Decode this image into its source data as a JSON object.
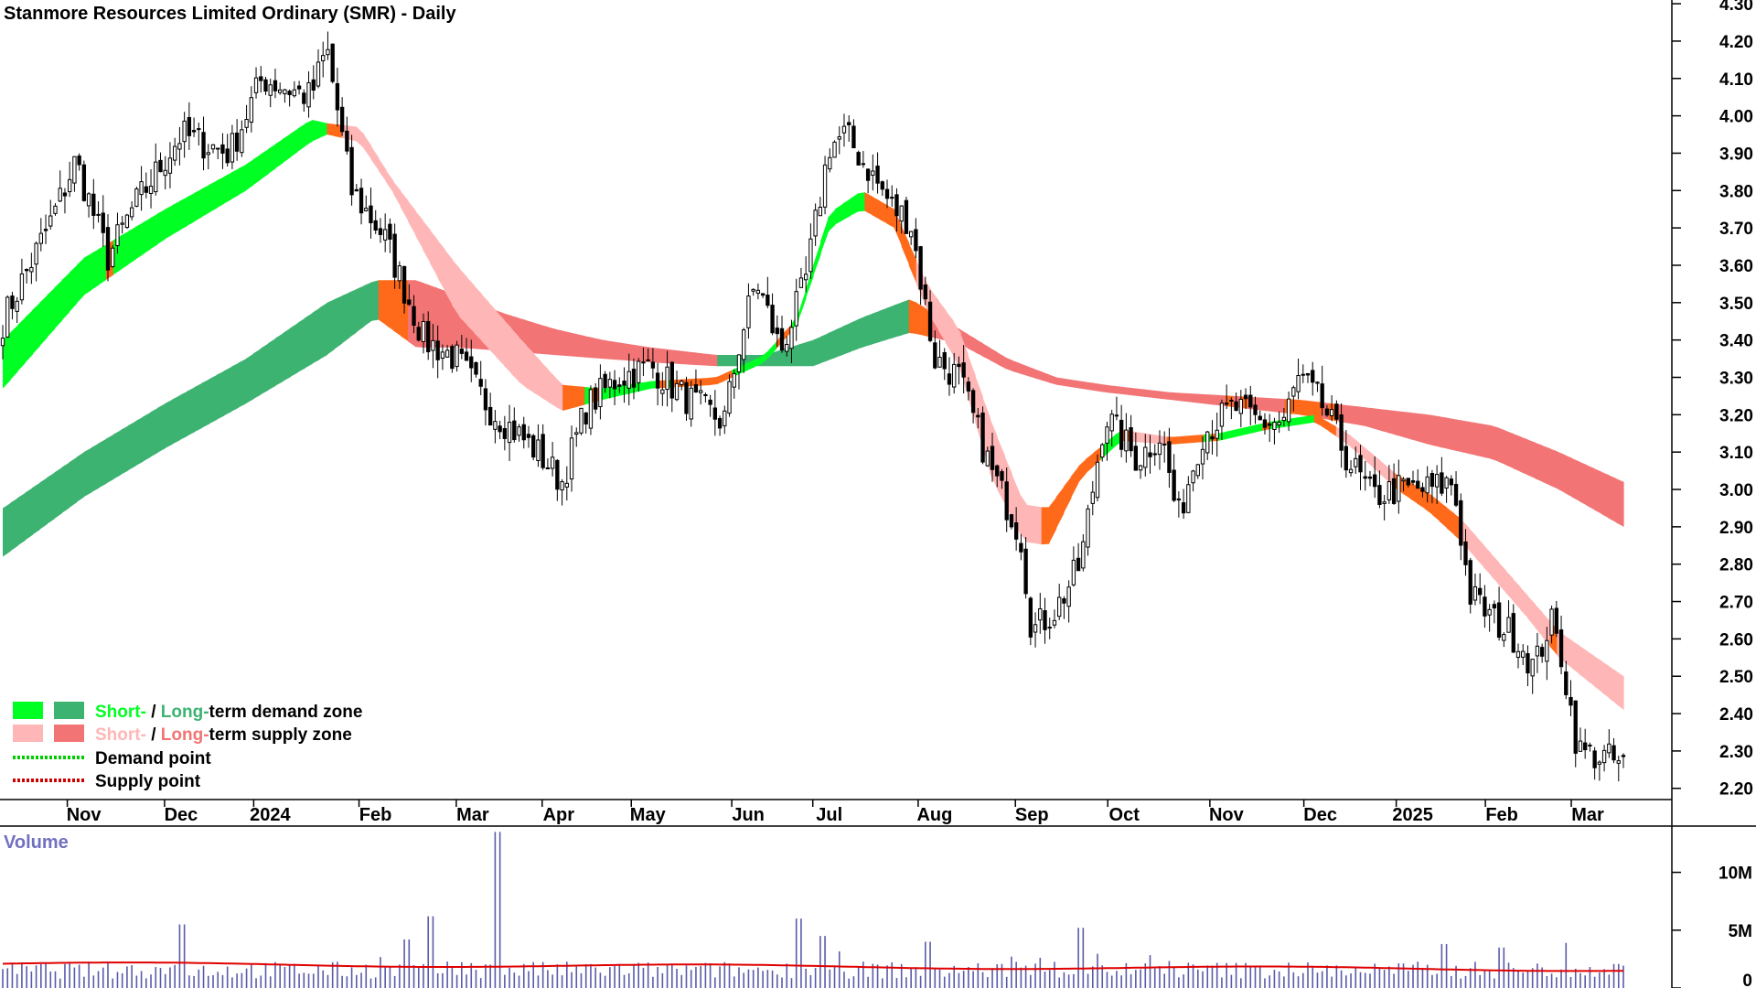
{
  "chart_data": {
    "type": "candlestick",
    "title": "Stanmore Resources Limited Ordinary (SMR) - Daily",
    "price_axis": {
      "ylim": [
        2.17,
        4.31
      ],
      "ticks": [
        "4.30",
        "4.20",
        "4.10",
        "4.00",
        "3.90",
        "3.80",
        "3.70",
        "3.60",
        "3.50",
        "3.40",
        "3.30",
        "3.20",
        "3.10",
        "3.00",
        "2.90",
        "2.80",
        "2.70",
        "2.60",
        "2.50",
        "2.40",
        "2.30",
        "2.20"
      ]
    },
    "x_axis": {
      "ticks": [
        {
          "label": "Nov",
          "t": 0.05
        },
        {
          "label": "Dec",
          "t": 0.11
        },
        {
          "label": "2024",
          "t": 0.165
        },
        {
          "label": "Feb",
          "t": 0.23
        },
        {
          "label": "Mar",
          "t": 0.29
        },
        {
          "label": "Apr",
          "t": 0.343
        },
        {
          "label": "May",
          "t": 0.398
        },
        {
          "label": "Jun",
          "t": 0.46
        },
        {
          "label": "Jul",
          "t": 0.51
        },
        {
          "label": "Aug",
          "t": 0.575
        },
        {
          "label": "Sep",
          "t": 0.635
        },
        {
          "label": "Oct",
          "t": 0.692
        },
        {
          "label": "Nov",
          "t": 0.755
        },
        {
          "label": "Dec",
          "t": 0.813
        },
        {
          "label": "2025",
          "t": 0.87
        },
        {
          "label": "Feb",
          "t": 0.925
        },
        {
          "label": "Mar",
          "t": 0.978
        }
      ]
    },
    "price_anchors": [
      [
        0.0,
        3.45
      ],
      [
        0.03,
        3.72
      ],
      [
        0.045,
        3.88
      ],
      [
        0.065,
        3.62
      ],
      [
        0.08,
        3.75
      ],
      [
        0.11,
        3.95
      ],
      [
        0.14,
        3.9
      ],
      [
        0.16,
        4.1
      ],
      [
        0.19,
        4.05
      ],
      [
        0.2,
        4.18
      ],
      [
        0.215,
        3.8
      ],
      [
        0.235,
        3.68
      ],
      [
        0.26,
        3.4
      ],
      [
        0.28,
        3.35
      ],
      [
        0.3,
        3.22
      ],
      [
        0.33,
        3.1
      ],
      [
        0.345,
        3.02
      ],
      [
        0.36,
        3.22
      ],
      [
        0.38,
        3.3
      ],
      [
        0.4,
        3.33
      ],
      [
        0.42,
        3.25
      ],
      [
        0.445,
        3.18
      ],
      [
        0.455,
        3.4
      ],
      [
        0.465,
        3.56
      ],
      [
        0.48,
        3.37
      ],
      [
        0.495,
        3.55
      ],
      [
        0.51,
        3.92
      ],
      [
        0.52,
        3.95
      ],
      [
        0.535,
        3.85
      ],
      [
        0.55,
        3.75
      ],
      [
        0.56,
        3.72
      ],
      [
        0.575,
        3.35
      ],
      [
        0.59,
        3.3
      ],
      [
        0.61,
        3.05
      ],
      [
        0.628,
        2.88
      ],
      [
        0.635,
        2.62
      ],
      [
        0.65,
        2.68
      ],
      [
        0.665,
        2.8
      ],
      [
        0.68,
        3.2
      ],
      [
        0.7,
        3.08
      ],
      [
        0.715,
        3.15
      ],
      [
        0.725,
        2.92
      ],
      [
        0.74,
        3.15
      ],
      [
        0.76,
        3.22
      ],
      [
        0.775,
        3.18
      ],
      [
        0.79,
        3.18
      ],
      [
        0.8,
        3.3
      ],
      [
        0.815,
        3.22
      ],
      [
        0.83,
        3.08
      ],
      [
        0.845,
        2.98
      ],
      [
        0.86,
        3.0
      ],
      [
        0.88,
        3.0
      ],
      [
        0.895,
        3.02
      ],
      [
        0.905,
        2.72
      ],
      [
        0.92,
        2.65
      ],
      [
        0.935,
        2.6
      ],
      [
        0.945,
        2.52
      ],
      [
        0.955,
        2.65
      ],
      [
        0.962,
        2.55
      ],
      [
        0.972,
        2.3
      ],
      [
        0.99,
        2.28
      ],
      [
        1.0,
        2.26
      ]
    ],
    "bands": {
      "short_term": [
        [
          0.0,
          3.27,
          3.4
        ],
        [
          0.05,
          3.52,
          3.62
        ],
        [
          0.1,
          3.67,
          3.75
        ],
        [
          0.15,
          3.8,
          3.87
        ],
        [
          0.19,
          3.93,
          3.99
        ],
        [
          0.2,
          3.95,
          3.98
        ],
        [
          0.22,
          3.93,
          3.97
        ],
        [
          0.24,
          3.8,
          3.83
        ],
        [
          0.28,
          3.47,
          3.6
        ],
        [
          0.32,
          3.28,
          3.4
        ],
        [
          0.345,
          3.21,
          3.28
        ],
        [
          0.37,
          3.24,
          3.27
        ],
        [
          0.4,
          3.27,
          3.29
        ],
        [
          0.44,
          3.28,
          3.3
        ],
        [
          0.47,
          3.34,
          3.36
        ],
        [
          0.49,
          3.44,
          3.46
        ],
        [
          0.51,
          3.7,
          3.74
        ],
        [
          0.53,
          3.75,
          3.8
        ],
        [
          0.55,
          3.7,
          3.75
        ],
        [
          0.57,
          3.48,
          3.55
        ],
        [
          0.59,
          3.33,
          3.43
        ],
        [
          0.61,
          3.03,
          3.18
        ],
        [
          0.63,
          2.86,
          2.96
        ],
        [
          0.645,
          2.85,
          2.95
        ],
        [
          0.665,
          3.03,
          3.07
        ],
        [
          0.69,
          3.13,
          3.16
        ],
        [
          0.72,
          3.12,
          3.14
        ],
        [
          0.75,
          3.13,
          3.15
        ],
        [
          0.78,
          3.16,
          3.18
        ],
        [
          0.81,
          3.18,
          3.2
        ],
        [
          0.83,
          3.12,
          3.15
        ],
        [
          0.86,
          3.0,
          3.04
        ],
        [
          0.88,
          2.94,
          2.99
        ],
        [
          0.9,
          2.86,
          2.92
        ],
        [
          0.92,
          2.76,
          2.82
        ],
        [
          0.94,
          2.66,
          2.72
        ],
        [
          0.96,
          2.55,
          2.62
        ],
        [
          1.0,
          2.41,
          2.5
        ]
      ],
      "long_term": [
        [
          0.0,
          2.82,
          2.95
        ],
        [
          0.05,
          2.98,
          3.1
        ],
        [
          0.1,
          3.11,
          3.23
        ],
        [
          0.15,
          3.23,
          3.35
        ],
        [
          0.2,
          3.36,
          3.5
        ],
        [
          0.23,
          3.46,
          3.56
        ],
        [
          0.255,
          3.38,
          3.56
        ],
        [
          0.28,
          3.38,
          3.52
        ],
        [
          0.31,
          3.37,
          3.47
        ],
        [
          0.34,
          3.36,
          3.43
        ],
        [
          0.37,
          3.35,
          3.4
        ],
        [
          0.4,
          3.34,
          3.38
        ],
        [
          0.44,
          3.33,
          3.36
        ],
        [
          0.47,
          3.33,
          3.36
        ],
        [
          0.5,
          3.33,
          3.4
        ],
        [
          0.53,
          3.38,
          3.46
        ],
        [
          0.56,
          3.42,
          3.51
        ],
        [
          0.59,
          3.39,
          3.43
        ],
        [
          0.62,
          3.32,
          3.35
        ],
        [
          0.65,
          3.28,
          3.3
        ],
        [
          0.68,
          3.26,
          3.28
        ],
        [
          0.72,
          3.24,
          3.26
        ],
        [
          0.76,
          3.22,
          3.25
        ],
        [
          0.8,
          3.2,
          3.24
        ],
        [
          0.84,
          3.17,
          3.22
        ],
        [
          0.88,
          3.12,
          3.2
        ],
        [
          0.92,
          3.08,
          3.17
        ],
        [
          0.96,
          3.0,
          3.1
        ],
        [
          1.0,
          2.9,
          3.02
        ]
      ]
    },
    "volume_axis": {
      "ylim": [
        0,
        14000000
      ],
      "ticks": [
        {
          "label": "10M",
          "v": 10000000
        },
        {
          "label": "5M",
          "v": 5000000
        },
        {
          "label": "0",
          "v": 0
        }
      ],
      "label": "Volume",
      "spikes": [
        [
          0.11,
          5500000
        ],
        [
          0.263,
          6200000
        ],
        [
          0.305,
          13500000
        ],
        [
          0.49,
          6000000
        ],
        [
          0.505,
          4500000
        ],
        [
          0.665,
          5200000
        ],
        [
          0.89,
          3800000
        ],
        [
          0.925,
          3500000
        ],
        [
          0.57,
          4000000
        ],
        [
          0.25,
          4200000
        ]
      ]
    },
    "colors": {
      "demand_short": "#00ff22",
      "demand_long": "#3cb371",
      "supply_short": "#ffb6b6",
      "supply_long": "#f27474",
      "supply_short_alt": "#ff6a1a",
      "supply_long_alt": "#ff6a1a",
      "candle_up": "#ffffff",
      "candle_down": "#000000",
      "volume_bar": "#5a5aaa",
      "volume_ma": "#e00000",
      "demand_point": "#00cc00",
      "supply_point": "#cc0000"
    },
    "legend": {
      "row1_short": "Short-",
      "row1_sep": " / ",
      "row1_long": "Long-",
      "row1_rest": "term demand zone",
      "row2_short": "Short-",
      "row2_sep": " / ",
      "row2_long": "Long-",
      "row2_rest": "term supply zone",
      "row3": "Demand point",
      "row4": "Supply point"
    }
  }
}
